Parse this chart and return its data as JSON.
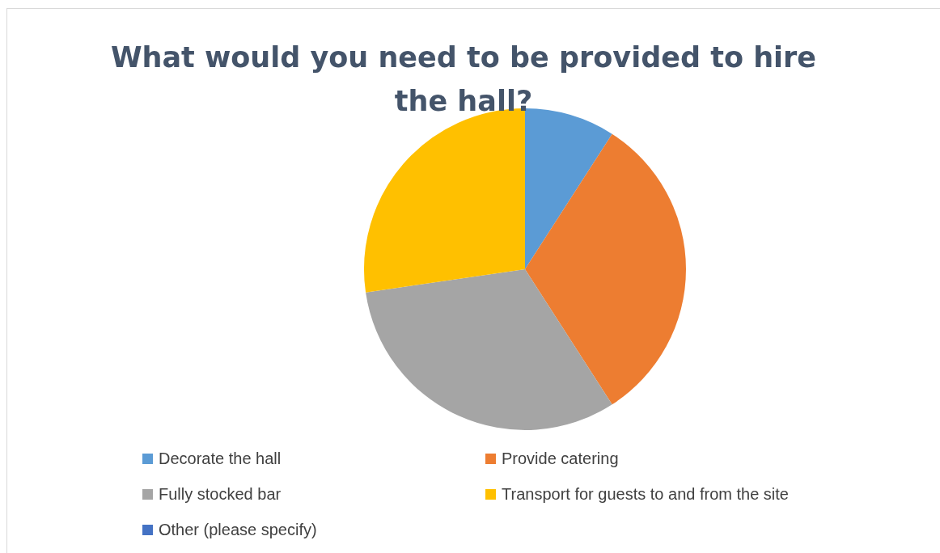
{
  "chart_data": {
    "type": "pie",
    "title": "What would you need to be provided to hire the hall?",
    "categories": [
      "Decorate the hall",
      "Provide catering",
      "Fully stocked bar",
      "Transport for guests to and from the site",
      "Other (please specify)"
    ],
    "values": [
      9.1,
      31.8,
      31.8,
      27.3,
      0
    ],
    "colors": [
      "#5b9bd5",
      "#ed7d31",
      "#a5a5a5",
      "#ffc000",
      "#4472c4"
    ],
    "legend": "bottom"
  }
}
